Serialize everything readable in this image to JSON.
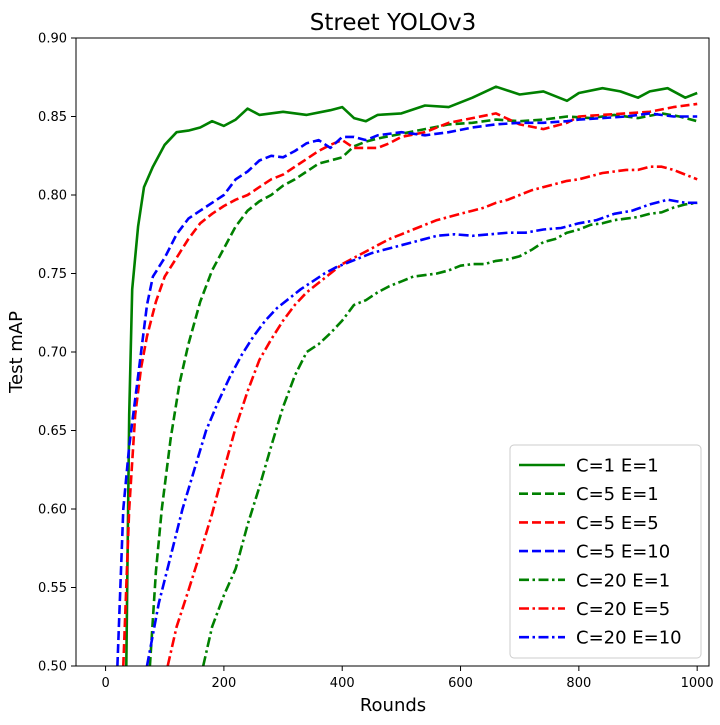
{
  "chart_data": {
    "type": "line",
    "title": "Street YOLOv3",
    "xlabel": "Rounds",
    "ylabel": "Test mAP",
    "xlim": [
      -50,
      1020
    ],
    "ylim": [
      0.5,
      0.9
    ],
    "xticks": [
      0,
      200,
      400,
      600,
      800,
      1000
    ],
    "yticks": [
      "0.50",
      "0.55",
      "0.60",
      "0.65",
      "0.70",
      "0.75",
      "0.80",
      "0.85",
      "0.90"
    ],
    "legend_position": "bottom-right",
    "series": [
      {
        "name": "C=1 E=1",
        "color": "#008000",
        "style": "solid",
        "points": [
          [
            35,
            0.5
          ],
          [
            40,
            0.66
          ],
          [
            45,
            0.74
          ],
          [
            55,
            0.78
          ],
          [
            65,
            0.805
          ],
          [
            80,
            0.818
          ],
          [
            100,
            0.832
          ],
          [
            120,
            0.84
          ],
          [
            140,
            0.841
          ],
          [
            160,
            0.843
          ],
          [
            180,
            0.847
          ],
          [
            200,
            0.844
          ],
          [
            220,
            0.848
          ],
          [
            240,
            0.855
          ],
          [
            260,
            0.851
          ],
          [
            300,
            0.853
          ],
          [
            340,
            0.851
          ],
          [
            380,
            0.854
          ],
          [
            400,
            0.856
          ],
          [
            420,
            0.849
          ],
          [
            440,
            0.847
          ],
          [
            460,
            0.851
          ],
          [
            500,
            0.852
          ],
          [
            540,
            0.857
          ],
          [
            580,
            0.856
          ],
          [
            620,
            0.862
          ],
          [
            660,
            0.869
          ],
          [
            700,
            0.864
          ],
          [
            740,
            0.866
          ],
          [
            780,
            0.86
          ],
          [
            800,
            0.865
          ],
          [
            840,
            0.868
          ],
          [
            870,
            0.866
          ],
          [
            900,
            0.862
          ],
          [
            920,
            0.866
          ],
          [
            950,
            0.868
          ],
          [
            980,
            0.862
          ],
          [
            1000,
            0.865
          ]
        ]
      },
      {
        "name": "C=5 E=1",
        "color": "#008000",
        "style": "dashed",
        "points": [
          [
            75,
            0.5
          ],
          [
            85,
            0.56
          ],
          [
            95,
            0.6
          ],
          [
            110,
            0.645
          ],
          [
            125,
            0.68
          ],
          [
            140,
            0.705
          ],
          [
            160,
            0.732
          ],
          [
            180,
            0.752
          ],
          [
            200,
            0.766
          ],
          [
            220,
            0.78
          ],
          [
            240,
            0.79
          ],
          [
            260,
            0.796
          ],
          [
            280,
            0.8
          ],
          [
            300,
            0.806
          ],
          [
            320,
            0.81
          ],
          [
            340,
            0.815
          ],
          [
            360,
            0.82
          ],
          [
            380,
            0.822
          ],
          [
            400,
            0.824
          ],
          [
            420,
            0.831
          ],
          [
            440,
            0.834
          ],
          [
            460,
            0.836
          ],
          [
            500,
            0.839
          ],
          [
            540,
            0.842
          ],
          [
            580,
            0.845
          ],
          [
            620,
            0.846
          ],
          [
            660,
            0.848
          ],
          [
            700,
            0.847
          ],
          [
            740,
            0.848
          ],
          [
            780,
            0.85
          ],
          [
            820,
            0.849
          ],
          [
            860,
            0.851
          ],
          [
            900,
            0.849
          ],
          [
            940,
            0.852
          ],
          [
            970,
            0.85
          ],
          [
            1000,
            0.847
          ]
        ]
      },
      {
        "name": "C=5 E=5",
        "color": "#ff0000",
        "style": "dashed",
        "points": [
          [
            30,
            0.5
          ],
          [
            40,
            0.6
          ],
          [
            50,
            0.66
          ],
          [
            60,
            0.69
          ],
          [
            70,
            0.71
          ],
          [
            85,
            0.732
          ],
          [
            100,
            0.748
          ],
          [
            120,
            0.76
          ],
          [
            140,
            0.772
          ],
          [
            160,
            0.782
          ],
          [
            180,
            0.788
          ],
          [
            200,
            0.793
          ],
          [
            220,
            0.797
          ],
          [
            240,
            0.8
          ],
          [
            260,
            0.805
          ],
          [
            280,
            0.81
          ],
          [
            300,
            0.813
          ],
          [
            320,
            0.818
          ],
          [
            340,
            0.823
          ],
          [
            360,
            0.828
          ],
          [
            380,
            0.832
          ],
          [
            400,
            0.835
          ],
          [
            420,
            0.83
          ],
          [
            440,
            0.83
          ],
          [
            460,
            0.83
          ],
          [
            480,
            0.833
          ],
          [
            500,
            0.837
          ],
          [
            540,
            0.84
          ],
          [
            580,
            0.846
          ],
          [
            620,
            0.849
          ],
          [
            660,
            0.852
          ],
          [
            700,
            0.845
          ],
          [
            740,
            0.842
          ],
          [
            780,
            0.846
          ],
          [
            800,
            0.85
          ],
          [
            840,
            0.851
          ],
          [
            880,
            0.852
          ],
          [
            920,
            0.853
          ],
          [
            960,
            0.856
          ],
          [
            1000,
            0.858
          ]
        ]
      },
      {
        "name": "C=5 E=10",
        "color": "#0000ff",
        "style": "dashed",
        "points": [
          [
            20,
            0.5
          ],
          [
            30,
            0.6
          ],
          [
            40,
            0.64
          ],
          [
            50,
            0.67
          ],
          [
            60,
            0.7
          ],
          [
            70,
            0.73
          ],
          [
            80,
            0.748
          ],
          [
            100,
            0.76
          ],
          [
            120,
            0.775
          ],
          [
            140,
            0.785
          ],
          [
            160,
            0.79
          ],
          [
            180,
            0.795
          ],
          [
            200,
            0.8
          ],
          [
            220,
            0.81
          ],
          [
            240,
            0.815
          ],
          [
            260,
            0.822
          ],
          [
            280,
            0.825
          ],
          [
            300,
            0.824
          ],
          [
            320,
            0.828
          ],
          [
            340,
            0.833
          ],
          [
            360,
            0.835
          ],
          [
            380,
            0.83
          ],
          [
            400,
            0.837
          ],
          [
            420,
            0.837
          ],
          [
            440,
            0.835
          ],
          [
            460,
            0.838
          ],
          [
            500,
            0.84
          ],
          [
            540,
            0.838
          ],
          [
            580,
            0.84
          ],
          [
            620,
            0.843
          ],
          [
            660,
            0.845
          ],
          [
            700,
            0.846
          ],
          [
            740,
            0.846
          ],
          [
            780,
            0.847
          ],
          [
            800,
            0.848
          ],
          [
            840,
            0.849
          ],
          [
            880,
            0.85
          ],
          [
            920,
            0.852
          ],
          [
            960,
            0.85
          ],
          [
            1000,
            0.85
          ]
        ]
      },
      {
        "name": "C=20 E=1",
        "color": "#008000",
        "style": "dashdot",
        "points": [
          [
            165,
            0.5
          ],
          [
            180,
            0.525
          ],
          [
            200,
            0.545
          ],
          [
            220,
            0.562
          ],
          [
            240,
            0.59
          ],
          [
            260,
            0.614
          ],
          [
            280,
            0.64
          ],
          [
            300,
            0.665
          ],
          [
            320,
            0.685
          ],
          [
            340,
            0.7
          ],
          [
            360,
            0.705
          ],
          [
            380,
            0.712
          ],
          [
            400,
            0.72
          ],
          [
            420,
            0.73
          ],
          [
            440,
            0.733
          ],
          [
            460,
            0.738
          ],
          [
            480,
            0.742
          ],
          [
            500,
            0.745
          ],
          [
            520,
            0.748
          ],
          [
            540,
            0.749
          ],
          [
            560,
            0.75
          ],
          [
            580,
            0.752
          ],
          [
            600,
            0.755
          ],
          [
            620,
            0.756
          ],
          [
            640,
            0.756
          ],
          [
            660,
            0.758
          ],
          [
            680,
            0.759
          ],
          [
            700,
            0.761
          ],
          [
            720,
            0.765
          ],
          [
            740,
            0.77
          ],
          [
            760,
            0.772
          ],
          [
            780,
            0.776
          ],
          [
            800,
            0.778
          ],
          [
            820,
            0.781
          ],
          [
            840,
            0.782
          ],
          [
            860,
            0.784
          ],
          [
            880,
            0.785
          ],
          [
            900,
            0.786
          ],
          [
            920,
            0.788
          ],
          [
            940,
            0.789
          ],
          [
            960,
            0.792
          ],
          [
            980,
            0.794
          ],
          [
            1000,
            0.795
          ]
        ]
      },
      {
        "name": "C=20 E=5",
        "color": "#ff0000",
        "style": "dashdot",
        "points": [
          [
            105,
            0.5
          ],
          [
            120,
            0.525
          ],
          [
            140,
            0.548
          ],
          [
            160,
            0.572
          ],
          [
            180,
            0.597
          ],
          [
            200,
            0.625
          ],
          [
            220,
            0.652
          ],
          [
            240,
            0.675
          ],
          [
            260,
            0.695
          ],
          [
            280,
            0.708
          ],
          [
            300,
            0.72
          ],
          [
            320,
            0.73
          ],
          [
            340,
            0.738
          ],
          [
            360,
            0.744
          ],
          [
            380,
            0.75
          ],
          [
            400,
            0.756
          ],
          [
            420,
            0.76
          ],
          [
            440,
            0.764
          ],
          [
            460,
            0.768
          ],
          [
            480,
            0.772
          ],
          [
            500,
            0.775
          ],
          [
            520,
            0.778
          ],
          [
            540,
            0.781
          ],
          [
            560,
            0.784
          ],
          [
            580,
            0.786
          ],
          [
            600,
            0.788
          ],
          [
            620,
            0.79
          ],
          [
            640,
            0.792
          ],
          [
            660,
            0.795
          ],
          [
            680,
            0.797
          ],
          [
            700,
            0.8
          ],
          [
            720,
            0.803
          ],
          [
            740,
            0.805
          ],
          [
            760,
            0.807
          ],
          [
            780,
            0.809
          ],
          [
            800,
            0.81
          ],
          [
            820,
            0.812
          ],
          [
            840,
            0.814
          ],
          [
            860,
            0.815
          ],
          [
            880,
            0.816
          ],
          [
            900,
            0.816
          ],
          [
            920,
            0.818
          ],
          [
            940,
            0.818
          ],
          [
            960,
            0.816
          ],
          [
            980,
            0.813
          ],
          [
            1000,
            0.81
          ]
        ]
      },
      {
        "name": "C=20 E=10",
        "color": "#0000ff",
        "style": "dashdot",
        "points": [
          [
            70,
            0.5
          ],
          [
            90,
            0.54
          ],
          [
            110,
            0.57
          ],
          [
            130,
            0.6
          ],
          [
            150,
            0.625
          ],
          [
            170,
            0.65
          ],
          [
            190,
            0.668
          ],
          [
            210,
            0.684
          ],
          [
            230,
            0.698
          ],
          [
            250,
            0.71
          ],
          [
            270,
            0.72
          ],
          [
            290,
            0.728
          ],
          [
            310,
            0.734
          ],
          [
            330,
            0.74
          ],
          [
            350,
            0.745
          ],
          [
            370,
            0.75
          ],
          [
            390,
            0.754
          ],
          [
            410,
            0.757
          ],
          [
            430,
            0.76
          ],
          [
            450,
            0.763
          ],
          [
            470,
            0.765
          ],
          [
            500,
            0.768
          ],
          [
            530,
            0.771
          ],
          [
            560,
            0.774
          ],
          [
            590,
            0.775
          ],
          [
            620,
            0.774
          ],
          [
            650,
            0.775
          ],
          [
            680,
            0.776
          ],
          [
            710,
            0.776
          ],
          [
            740,
            0.778
          ],
          [
            770,
            0.779
          ],
          [
            800,
            0.782
          ],
          [
            830,
            0.784
          ],
          [
            860,
            0.788
          ],
          [
            890,
            0.79
          ],
          [
            920,
            0.794
          ],
          [
            950,
            0.797
          ],
          [
            980,
            0.795
          ],
          [
            1000,
            0.795
          ]
        ]
      }
    ]
  }
}
